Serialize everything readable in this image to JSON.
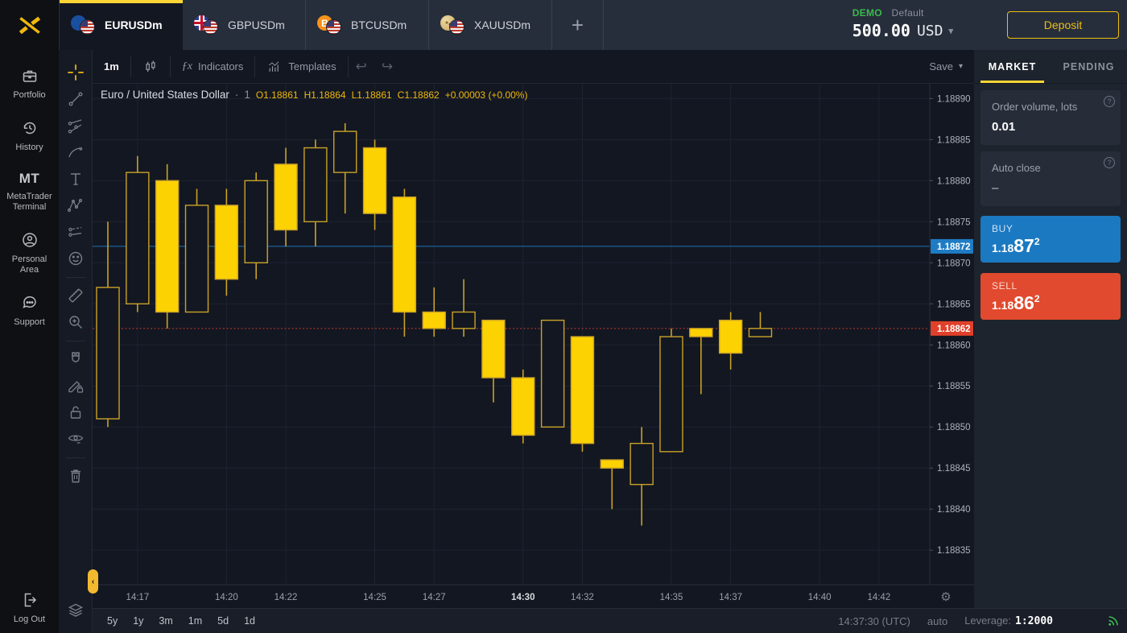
{
  "topbar": {
    "tabs": [
      {
        "label": "EURUSDm",
        "icon": "eur-usd-flag",
        "active": true
      },
      {
        "label": "GBPUSDm",
        "icon": "gbp-usd-flag",
        "active": false
      },
      {
        "label": "BTCUSDm",
        "icon": "btc-usd-flag",
        "active": false
      },
      {
        "label": "XAUUSDm",
        "icon": "xau-usd-flag",
        "active": false
      }
    ],
    "add_tab": "+",
    "account": {
      "badge": "DEMO",
      "profile": "Default",
      "balance": "500.00",
      "currency": "USD"
    },
    "deposit_label": "Deposit"
  },
  "sidebar": {
    "items": [
      {
        "label": "Portfolio",
        "icon": "briefcase-icon"
      },
      {
        "label": "History",
        "icon": "history-clock-icon"
      },
      {
        "glyph": "MT",
        "label": "MetaTrader Terminal",
        "icon": "mt-text-icon"
      },
      {
        "label": "Personal Area",
        "icon": "person-circle-icon"
      },
      {
        "label": "Support",
        "icon": "chat-bubble-icon"
      }
    ],
    "logout_label": "Log Out"
  },
  "chart_toolbar": {
    "timeframe": "1m",
    "indicators_label": "Indicators",
    "templates_label": "Templates",
    "undo_glyph": "↩",
    "redo_glyph": "↪",
    "save_label": "Save",
    "caret": "▾"
  },
  "legend": {
    "title": "Euro / United States Dollar",
    "separator": "·",
    "interval": "1",
    "values": [
      {
        "v": "O1.18861"
      },
      {
        "v": "H1.18864"
      },
      {
        "v": "L1.18861"
      },
      {
        "v": "C1.18862"
      },
      {
        "v": "+0.00003 (+0.00%)"
      }
    ]
  },
  "order_panel": {
    "tabs": [
      {
        "label": "MARKET",
        "active": true
      },
      {
        "label": "PENDING",
        "active": false
      }
    ],
    "volume_card": {
      "label": "Order volume, lots",
      "value": "0.01",
      "help": "?"
    },
    "autoclose_card": {
      "label": "Auto close",
      "value": "–",
      "help": "?"
    },
    "buy": {
      "label": "BUY",
      "price_prefix": "1.18",
      "price_big": "87",
      "price_sup": "2",
      "color": "#1b79c2"
    },
    "sell": {
      "label": "SELL",
      "price_prefix": "1.18",
      "price_big": "86",
      "price_sup": "2",
      "color": "#e14a2e"
    }
  },
  "bottom_bar": {
    "ranges": [
      "5y",
      "1y",
      "3m",
      "1m",
      "5d",
      "1d"
    ],
    "clock": "14:37:30 (UTC)",
    "mode": "auto",
    "leverage_label": "Leverage:",
    "leverage_value": "1:2000"
  },
  "chart_data": {
    "type": "candlestick",
    "symbol": "EURUSDm",
    "title": "Euro / United States Dollar",
    "interval_minutes": 1,
    "ylim": [
      1.188308,
      1.188918
    ],
    "grid": true,
    "times": [
      "14:16",
      "14:17",
      "14:18",
      "14:19",
      "14:20",
      "14:21",
      "14:22",
      "14:23",
      "14:24",
      "14:25",
      "14:26",
      "14:27",
      "14:28",
      "14:29",
      "14:30",
      "14:31",
      "14:32",
      "14:33",
      "14:34",
      "14:35",
      "14:36",
      "14:37",
      "14:38"
    ],
    "ohlc": [
      [
        1.18851,
        1.18875,
        1.1885,
        1.18867
      ],
      [
        1.18865,
        1.18883,
        1.18864,
        1.18881
      ],
      [
        1.1888,
        1.18882,
        1.18862,
        1.18864
      ],
      [
        1.18864,
        1.18879,
        1.18864,
        1.18877
      ],
      [
        1.18877,
        1.18879,
        1.18866,
        1.18868
      ],
      [
        1.1887,
        1.18881,
        1.18868,
        1.1888
      ],
      [
        1.18882,
        1.18884,
        1.18872,
        1.18874
      ],
      [
        1.18875,
        1.18885,
        1.18872,
        1.18884
      ],
      [
        1.18881,
        1.18887,
        1.18876,
        1.18886
      ],
      [
        1.18884,
        1.18885,
        1.18874,
        1.18876
      ],
      [
        1.18878,
        1.18879,
        1.18861,
        1.18864
      ],
      [
        1.18864,
        1.18867,
        1.18861,
        1.18862
      ],
      [
        1.18862,
        1.18868,
        1.18861,
        1.18864
      ],
      [
        1.18863,
        1.18863,
        1.18853,
        1.18856
      ],
      [
        1.18856,
        1.18857,
        1.18848,
        1.18849
      ],
      [
        1.1885,
        1.18863,
        1.1885,
        1.18863
      ],
      [
        1.18861,
        1.18861,
        1.18847,
        1.18848
      ],
      [
        1.18846,
        1.18846,
        1.1884,
        1.18845
      ],
      [
        1.18843,
        1.1885,
        1.18838,
        1.18848
      ],
      [
        1.18847,
        1.18862,
        1.18847,
        1.18861
      ],
      [
        1.18862,
        1.18862,
        1.18854,
        1.18861
      ],
      [
        1.18863,
        1.18864,
        1.18857,
        1.18859
      ],
      [
        1.18861,
        1.18864,
        1.18861,
        1.18862
      ]
    ],
    "y_ticks": [
      "1.18890",
      "1.18885",
      "1.18880",
      "1.18875",
      "1.18870",
      "1.18865",
      "1.18860",
      "1.18855",
      "1.18850",
      "1.18845",
      "1.18840",
      "1.18835"
    ],
    "x_ticks": [
      {
        "label": "14:17",
        "slot": 1
      },
      {
        "label": "14:20",
        "slot": 4
      },
      {
        "label": "14:22",
        "slot": 6
      },
      {
        "label": "14:25",
        "slot": 9
      },
      {
        "label": "14:27",
        "slot": 11
      },
      {
        "label": "14:30",
        "slot": 14,
        "major": true
      },
      {
        "label": "14:32",
        "slot": 16
      },
      {
        "label": "14:35",
        "slot": 19
      },
      {
        "label": "14:37",
        "slot": 21
      },
      {
        "label": "14:40",
        "slot": 24
      },
      {
        "label": "14:42",
        "slot": 26
      }
    ],
    "price_lines": [
      {
        "name": "ask",
        "price": 1.18872,
        "label": "1.18872",
        "color": "#1f7cc4",
        "style": "solid"
      },
      {
        "name": "bid",
        "price": 1.18862,
        "label": "1.18862",
        "color": "#e0402a",
        "style": "dotted"
      }
    ],
    "colors": {
      "up_fill": "#131722",
      "up_stroke": "#c9a227",
      "down_fill": "#fdd202",
      "down_stroke": "#c9a227",
      "wick": "#c9a227",
      "grid": "#1d2331",
      "axis_text": "#aeb2bb",
      "background": "#131722"
    },
    "legend_position": "top-left"
  }
}
